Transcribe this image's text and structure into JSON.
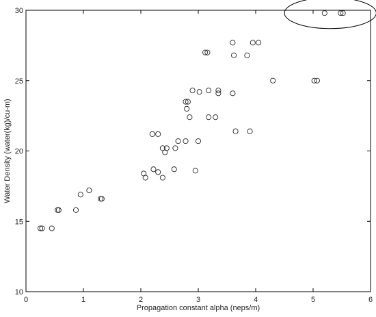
{
  "chart_data": {
    "type": "scatter",
    "title": "",
    "xlabel": "Propagation constant alpha (neps/m)",
    "ylabel": "Water Density (water(kg)/cu-m)",
    "xlim": [
      0,
      6
    ],
    "ylim": [
      10,
      30
    ],
    "xticks": [
      0,
      1,
      2,
      3,
      4,
      5,
      6
    ],
    "yticks": [
      10,
      15,
      20,
      25,
      30
    ],
    "grid": false,
    "marker": "open-circle",
    "highlight": {
      "shape": "ellipse",
      "center": [
        5.3,
        29.8
      ],
      "radius": [
        0.8,
        1.1
      ]
    },
    "series": [
      {
        "values": [
          [
            0.25,
            14.5
          ],
          [
            0.28,
            14.5
          ],
          [
            0.45,
            14.5
          ],
          [
            0.55,
            15.8
          ],
          [
            0.57,
            15.8
          ],
          [
            0.87,
            15.8
          ],
          [
            0.95,
            16.9
          ],
          [
            1.1,
            17.2
          ],
          [
            1.3,
            16.6
          ],
          [
            1.32,
            16.6
          ],
          [
            2.05,
            18.4
          ],
          [
            2.08,
            18.1
          ],
          [
            2.22,
            18.7
          ],
          [
            2.3,
            18.5
          ],
          [
            2.38,
            18.1
          ],
          [
            2.2,
            21.2
          ],
          [
            2.3,
            21.2
          ],
          [
            2.38,
            20.2
          ],
          [
            2.45,
            20.2
          ],
          [
            2.42,
            19.9
          ],
          [
            2.58,
            18.7
          ],
          [
            2.6,
            20.2
          ],
          [
            2.65,
            20.7
          ],
          [
            2.78,
            20.7
          ],
          [
            2.8,
            23.0
          ],
          [
            2.78,
            23.5
          ],
          [
            2.82,
            23.5
          ],
          [
            2.85,
            22.4
          ],
          [
            2.9,
            24.3
          ],
          [
            2.95,
            18.6
          ],
          [
            3.0,
            20.7
          ],
          [
            3.02,
            24.2
          ],
          [
            3.12,
            27.0
          ],
          [
            3.16,
            27.0
          ],
          [
            3.18,
            24.3
          ],
          [
            3.18,
            22.4
          ],
          [
            3.3,
            22.4
          ],
          [
            3.35,
            24.3
          ],
          [
            3.35,
            24.1
          ],
          [
            3.6,
            27.7
          ],
          [
            3.6,
            24.1
          ],
          [
            3.62,
            26.8
          ],
          [
            3.65,
            21.4
          ],
          [
            3.85,
            26.8
          ],
          [
            3.9,
            21.4
          ],
          [
            3.95,
            27.7
          ],
          [
            4.05,
            27.7
          ],
          [
            4.3,
            25.0
          ],
          [
            5.02,
            25.0
          ],
          [
            5.07,
            25.0
          ],
          [
            5.2,
            29.8
          ],
          [
            5.48,
            29.8
          ],
          [
            5.52,
            29.8
          ]
        ]
      }
    ]
  }
}
